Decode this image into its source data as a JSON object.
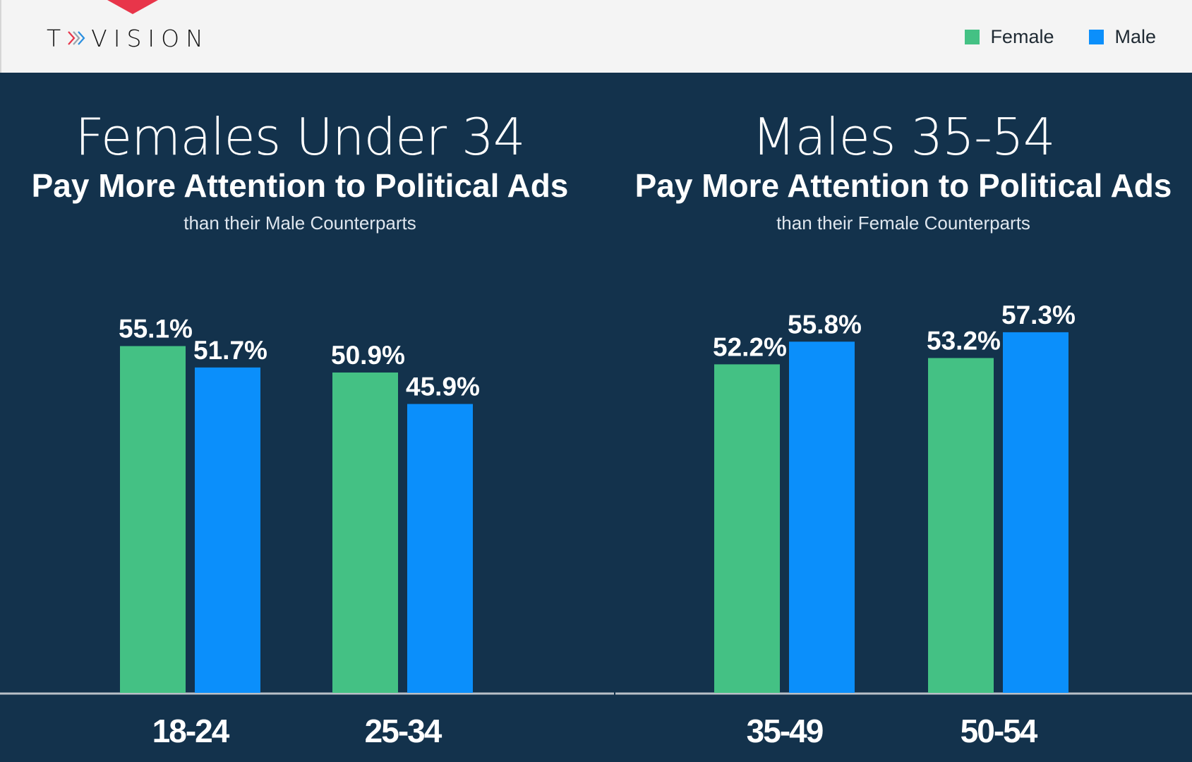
{
  "brand": {
    "logo_text": "TVISION",
    "logo_prefix": "T",
    "logo_suffix": "VISION",
    "accent_color": "#e8354a"
  },
  "legend": {
    "items": [
      {
        "label": "Female",
        "color": "#44c184"
      },
      {
        "label": "Male",
        "color": "#0b8ffb"
      }
    ]
  },
  "panels": [
    {
      "title": "Females Under 34",
      "subtitle": "Pay More Attention to Political Ads",
      "note": "than their Male Counterparts"
    },
    {
      "title": "Males 35-54",
      "subtitle": "Pay More Attention to Political Ads",
      "note": "than their Female Counterparts"
    }
  ],
  "chart_data": {
    "type": "bar",
    "categories": [
      "18-24",
      "25-34",
      "35-49",
      "50-54"
    ],
    "series": [
      {
        "name": "Female",
        "color": "#44c184",
        "values": [
          55.1,
          50.9,
          52.2,
          53.2
        ],
        "labels": [
          "55.1%",
          "50.9%",
          "52.2%",
          "53.2%"
        ]
      },
      {
        "name": "Male",
        "color": "#0b8ffb",
        "values": [
          51.7,
          45.9,
          55.8,
          57.3
        ],
        "labels": [
          "51.7%",
          "45.9%",
          "55.8%",
          "57.3%"
        ]
      }
    ],
    "ylim": [
      0,
      100
    ],
    "unit": "%",
    "legend": "top-right",
    "grid": false
  },
  "colors": {
    "background": "#13324c",
    "header_bg": "#f4f4f4",
    "baseline": "#b9c0c7"
  }
}
